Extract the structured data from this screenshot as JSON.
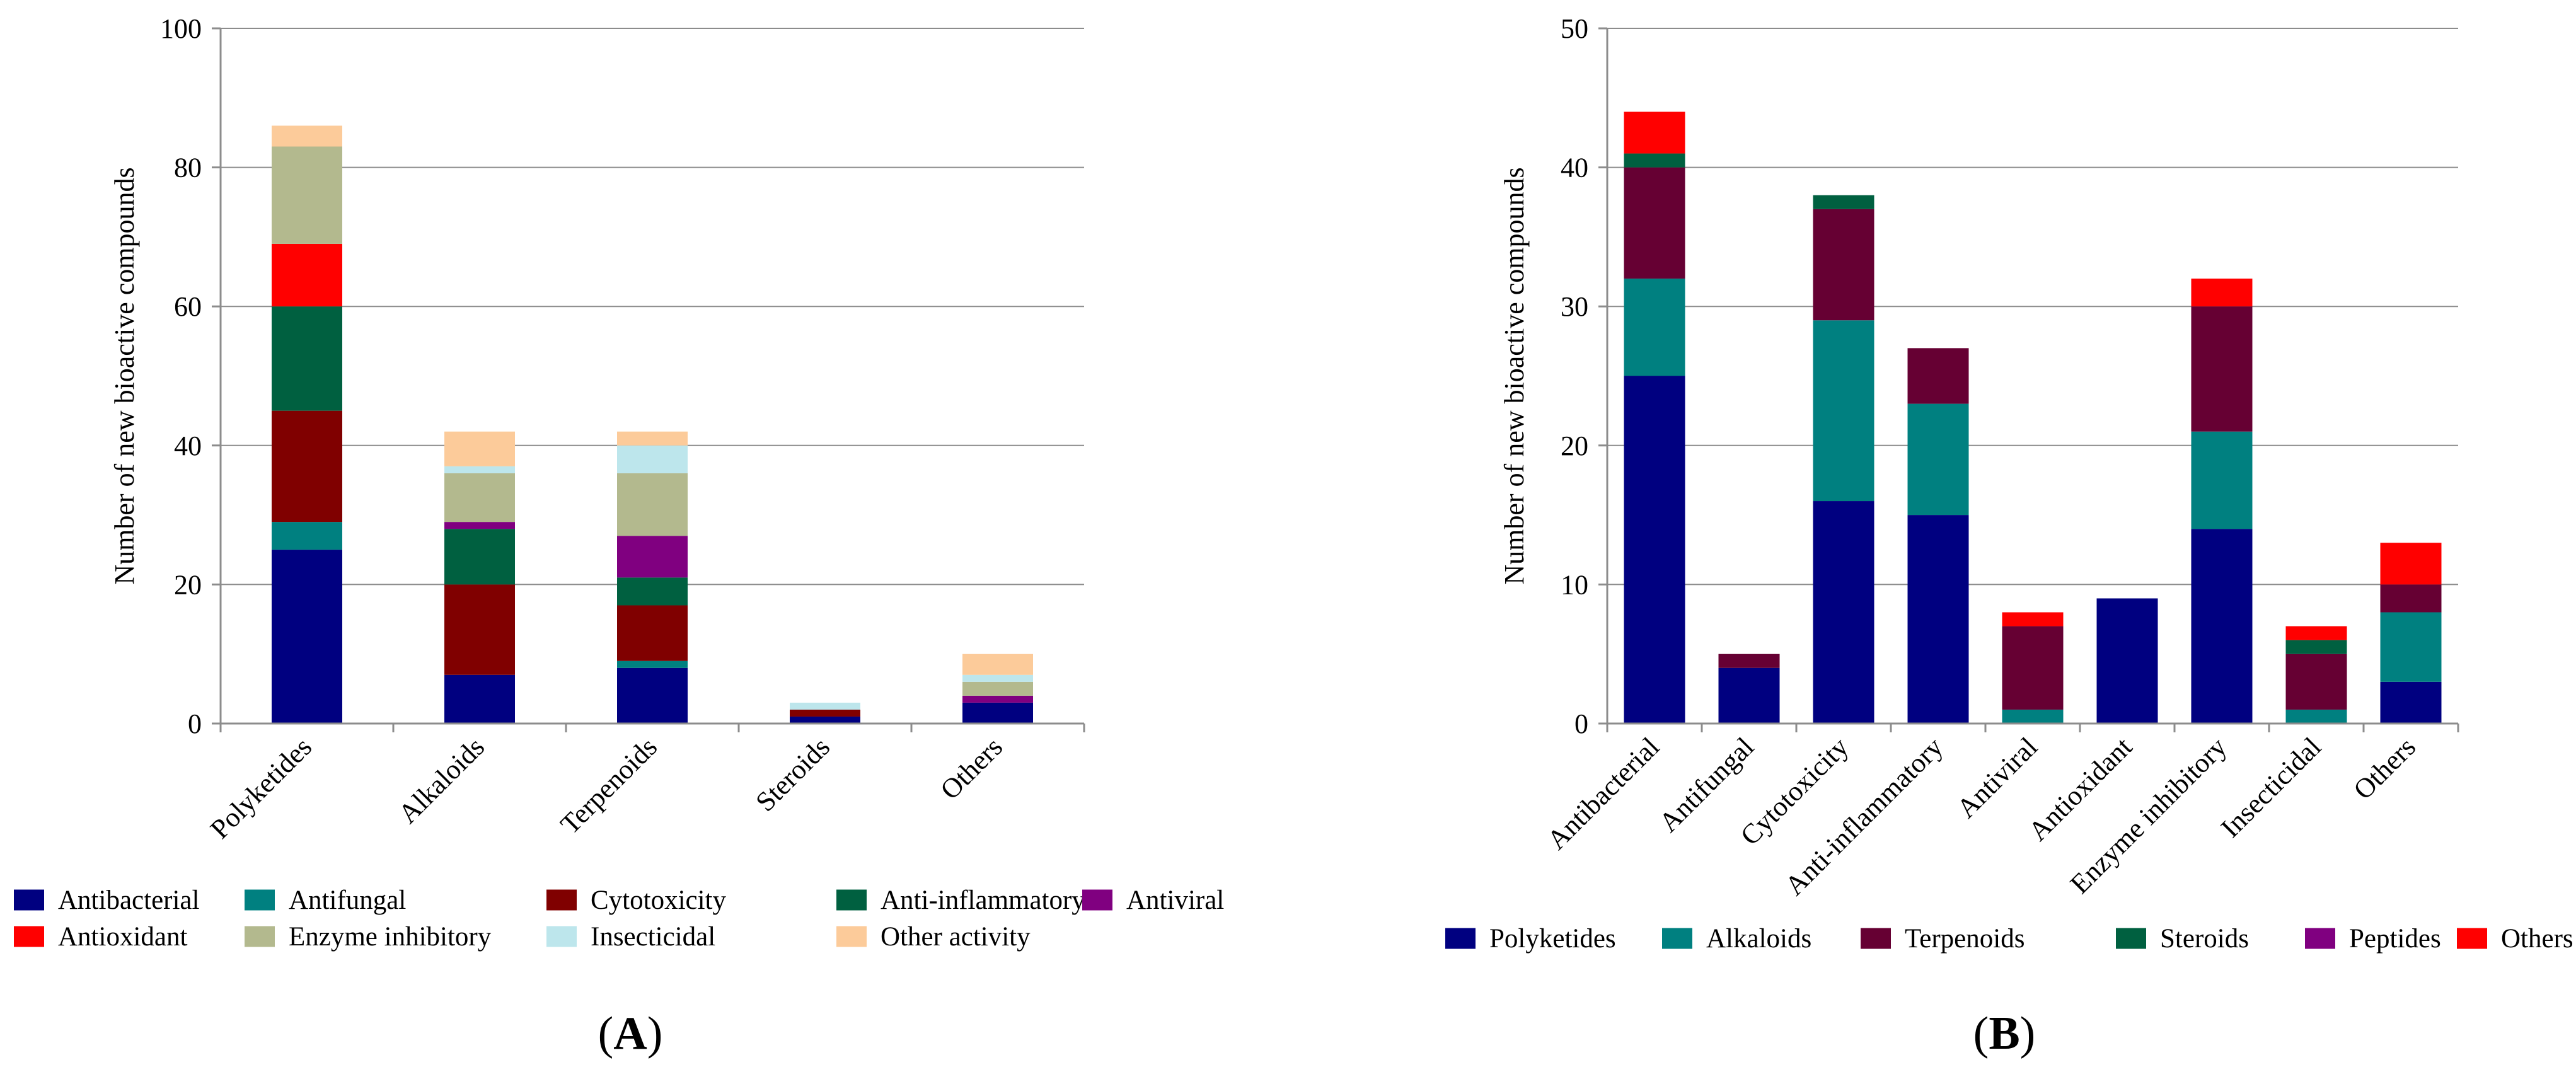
{
  "chart_data": [
    {
      "type": "bar",
      "stacked": true,
      "panel_label": "A",
      "ylabel": "Number of new bioactive compounds",
      "ylim": [
        0,
        100
      ],
      "yticks": [
        0,
        20,
        40,
        60,
        80,
        100
      ],
      "grid": true,
      "legend_position": "bottom",
      "categories": [
        "Polyketides",
        "Alkaloids",
        "Terpenoids",
        "Steroids",
        "Others"
      ],
      "series": [
        {
          "name": "Antibacterial",
          "color": "#000080",
          "values": [
            25,
            7,
            8,
            1,
            3
          ]
        },
        {
          "name": "Antifungal",
          "color": "#008080",
          "values": [
            4,
            0,
            1,
            0,
            0
          ]
        },
        {
          "name": "Cytotoxicity",
          "color": "#800000",
          "values": [
            16,
            13,
            8,
            1,
            0
          ]
        },
        {
          "name": "Anti-inflammatory",
          "color": "#006040",
          "values": [
            15,
            8,
            4,
            0,
            0
          ]
        },
        {
          "name": "Antiviral",
          "color": "#800080",
          "values": [
            0,
            1,
            6,
            0,
            1
          ]
        },
        {
          "name": "Antioxidant",
          "color": "#ff0000",
          "values": [
            9,
            0,
            0,
            0,
            0
          ]
        },
        {
          "name": "Enzyme inhibitory",
          "color": "#b3b98e",
          "values": [
            14,
            7,
            9,
            0,
            2
          ]
        },
        {
          "name": "Insecticidal",
          "color": "#bde6ec",
          "values": [
            0,
            1,
            4,
            1,
            1
          ]
        },
        {
          "name": "Other activity",
          "color": "#fccb9a",
          "values": [
            3,
            5,
            2,
            0,
            3
          ]
        }
      ]
    },
    {
      "type": "bar",
      "stacked": true,
      "panel_label": "B",
      "ylabel": "Number of new bioactive compounds",
      "ylim": [
        0,
        50
      ],
      "yticks": [
        0,
        10,
        20,
        30,
        40,
        50
      ],
      "grid": true,
      "legend_position": "bottom",
      "categories": [
        "Antibacterial",
        "Antifungal",
        "Cytotoxicity",
        "Anti-inflammatory",
        "Antiviral",
        "Antioxidant",
        "Enzyme inhibitory",
        "Insecticidal",
        "Others"
      ],
      "series": [
        {
          "name": "Polyketides",
          "color": "#000080",
          "values": [
            25,
            4,
            16,
            15,
            0,
            9,
            14,
            0,
            3
          ]
        },
        {
          "name": "Alkaloids",
          "color": "#008080",
          "values": [
            7,
            0,
            13,
            8,
            1,
            0,
            7,
            1,
            5
          ]
        },
        {
          "name": "Terpenoids",
          "color": "#660033",
          "values": [
            8,
            1,
            8,
            4,
            6,
            0,
            9,
            4,
            2
          ]
        },
        {
          "name": "Steroids",
          "color": "#006040",
          "values": [
            1,
            0,
            1,
            0,
            0,
            0,
            0,
            1,
            0
          ]
        },
        {
          "name": "Peptides",
          "color": "#800080",
          "values": [
            0,
            0,
            0,
            0,
            0,
            0,
            0,
            0,
            0
          ]
        },
        {
          "name": "Others",
          "color": "#ff0000",
          "values": [
            3,
            0,
            0,
            0,
            1,
            0,
            2,
            1,
            3
          ]
        }
      ]
    }
  ]
}
